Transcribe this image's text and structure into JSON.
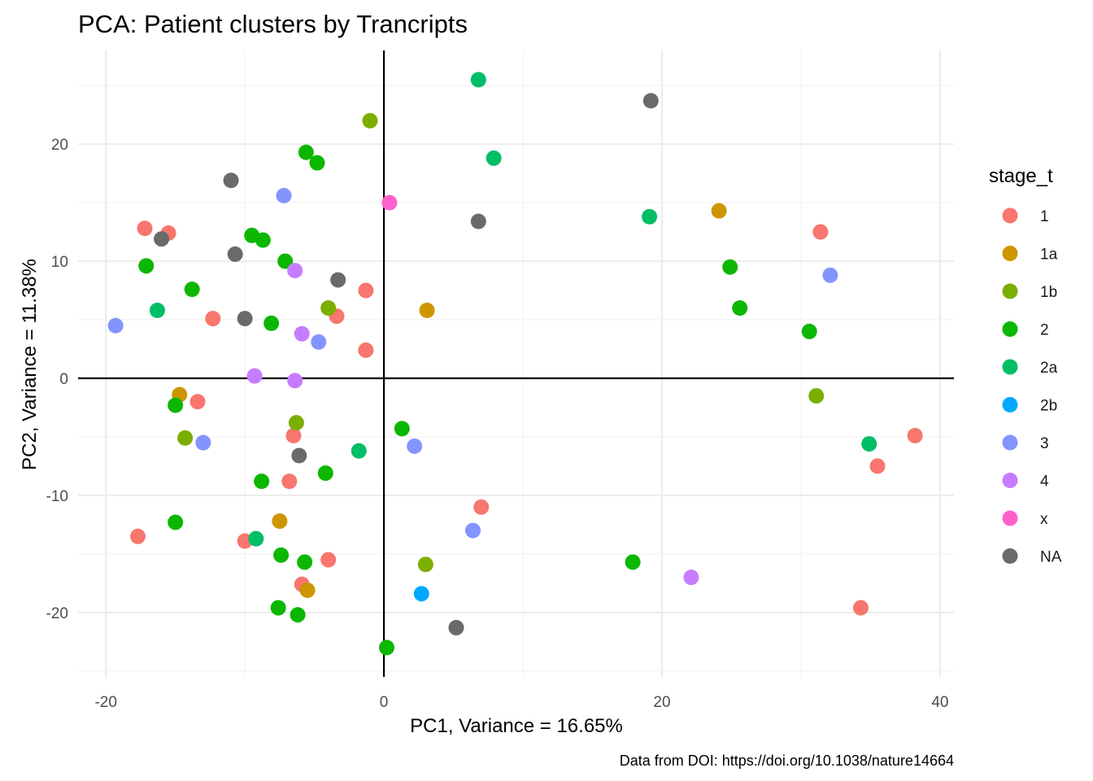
{
  "chart_data": {
    "type": "scatter",
    "title": "PCA: Patient clusters by Trancripts",
    "xlabel": "PC1, Variance = 16.65%",
    "ylabel": "PC2, Variance = 11.38%",
    "caption": "Data from DOI: https://doi.org/10.1038/nature14664",
    "xlim": [
      -22,
      41
    ],
    "ylim": [
      -25.5,
      28
    ],
    "x_ticks": [
      -20,
      0,
      20,
      40
    ],
    "y_ticks": [
      -20,
      -10,
      0,
      10,
      20
    ],
    "grid": true,
    "reference_lines": {
      "x": 0,
      "y": 0
    },
    "legend": {
      "title": "stage_t",
      "position": "right"
    },
    "series": [
      {
        "name": "1",
        "color": "#F8766D",
        "points": [
          [
            -17.2,
            12.8
          ],
          [
            -15.5,
            12.4
          ],
          [
            -12.3,
            5.1
          ],
          [
            -13.4,
            -2.0
          ],
          [
            -17.7,
            -13.5
          ],
          [
            -10.0,
            -13.9
          ],
          [
            -6.5,
            -4.9
          ],
          [
            -6.8,
            -8.8
          ],
          [
            -3.4,
            5.3
          ],
          [
            -1.3,
            7.5
          ],
          [
            -1.3,
            2.4
          ],
          [
            -4.0,
            -15.5
          ],
          [
            -5.9,
            -17.6
          ],
          [
            7.0,
            -11.0
          ],
          [
            31.4,
            12.5
          ],
          [
            38.2,
            -4.9
          ],
          [
            35.5,
            -7.5
          ],
          [
            34.3,
            -19.6
          ]
        ]
      },
      {
        "name": "1a",
        "color": "#CD9600",
        "points": [
          [
            24.1,
            14.3
          ],
          [
            3.1,
            5.8
          ],
          [
            -14.7,
            -1.4
          ],
          [
            -7.5,
            -12.2
          ],
          [
            -5.5,
            -18.1
          ]
        ]
      },
      {
        "name": "1b",
        "color": "#7CAE00",
        "points": [
          [
            -1.0,
            22.0
          ],
          [
            -4.0,
            6.0
          ],
          [
            -6.3,
            -3.8
          ],
          [
            -14.3,
            -5.1
          ],
          [
            3.0,
            -15.9
          ],
          [
            31.1,
            -1.5
          ]
        ]
      },
      {
        "name": "2",
        "color": "#0CB702",
        "points": [
          [
            -5.6,
            19.3
          ],
          [
            -4.8,
            18.4
          ],
          [
            -9.5,
            12.2
          ],
          [
            -8.7,
            11.8
          ],
          [
            -7.1,
            10.0
          ],
          [
            -17.1,
            9.6
          ],
          [
            -13.8,
            7.6
          ],
          [
            -8.1,
            4.7
          ],
          [
            -15.0,
            -2.3
          ],
          [
            -15.0,
            -12.3
          ],
          [
            -8.8,
            -8.8
          ],
          [
            -4.2,
            -8.1
          ],
          [
            -7.4,
            -15.1
          ],
          [
            -5.7,
            -15.7
          ],
          [
            -7.6,
            -19.6
          ],
          [
            -6.2,
            -20.2
          ],
          [
            1.3,
            -4.3
          ],
          [
            0.2,
            -23.0
          ],
          [
            17.9,
            -15.7
          ],
          [
            24.9,
            9.5
          ],
          [
            25.6,
            6.0
          ],
          [
            30.6,
            4.0
          ]
        ]
      },
      {
        "name": "2a",
        "color": "#00BE67",
        "points": [
          [
            6.8,
            25.5
          ],
          [
            7.9,
            18.8
          ],
          [
            19.1,
            13.8
          ],
          [
            -16.3,
            5.8
          ],
          [
            -1.8,
            -6.2
          ],
          [
            -9.2,
            -13.7
          ],
          [
            34.9,
            -5.6
          ]
        ]
      },
      {
        "name": "2b",
        "color": "#00A9FF",
        "points": [
          [
            2.7,
            -18.4
          ]
        ]
      },
      {
        "name": "3",
        "color": "#8494FF",
        "points": [
          [
            -7.2,
            15.6
          ],
          [
            -19.3,
            4.5
          ],
          [
            -4.7,
            3.1
          ],
          [
            -13.0,
            -5.5
          ],
          [
            2.2,
            -5.8
          ],
          [
            6.4,
            -13.0
          ],
          [
            32.1,
            8.8
          ]
        ]
      },
      {
        "name": "4",
        "color": "#C77CFF",
        "points": [
          [
            -6.4,
            9.2
          ],
          [
            -5.9,
            3.8
          ],
          [
            -9.3,
            0.2
          ],
          [
            -6.4,
            -0.2
          ],
          [
            22.1,
            -17.0
          ]
        ]
      },
      {
        "name": "x",
        "color": "#FF61CC",
        "points": [
          [
            0.4,
            15.0
          ]
        ]
      },
      {
        "name": "NA",
        "color": "#6A6A6A",
        "points": [
          [
            19.2,
            23.7
          ],
          [
            6.8,
            13.4
          ],
          [
            -11.0,
            16.9
          ],
          [
            -16.0,
            11.9
          ],
          [
            -10.7,
            10.6
          ],
          [
            -3.3,
            8.4
          ],
          [
            -10.0,
            5.1
          ],
          [
            -6.1,
            -6.6
          ],
          [
            5.2,
            -21.3
          ]
        ]
      }
    ]
  }
}
